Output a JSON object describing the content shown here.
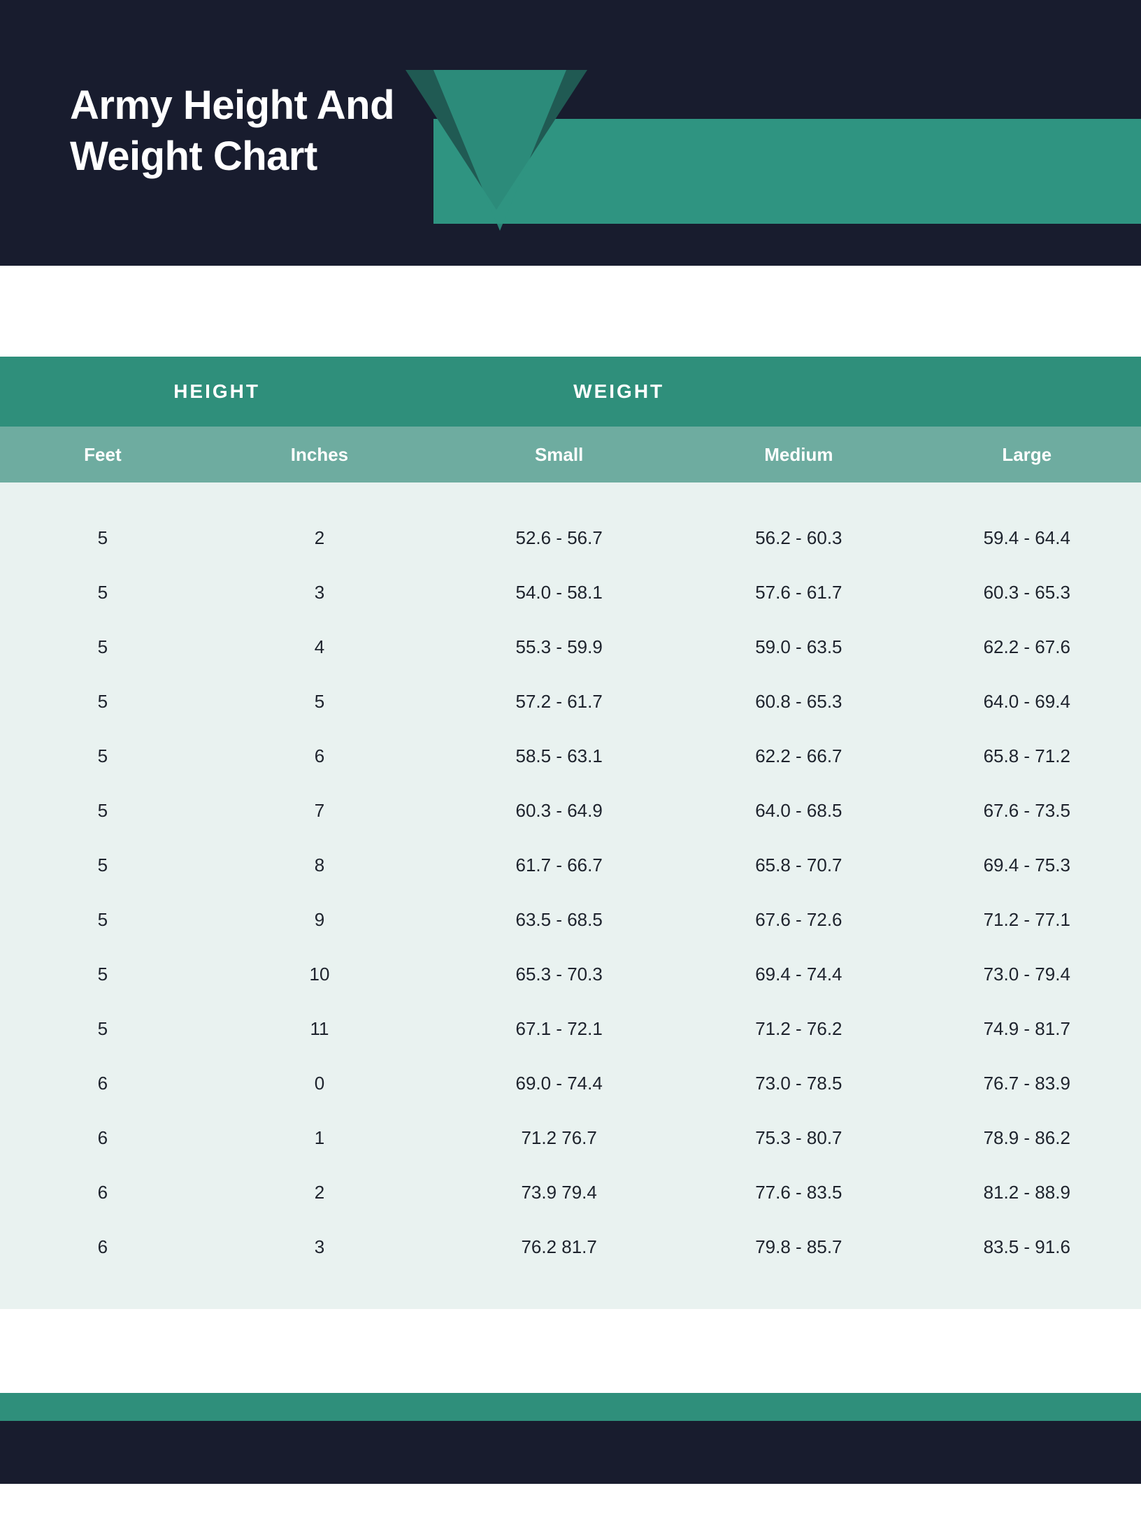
{
  "colors": {
    "dark_navy": "#181c2e",
    "teal_dark": "#2f8f7b",
    "teal_band": "#2f9481",
    "teal_mid": "#6eaca0",
    "body_bg": "#e9f2f0",
    "text_dark": "#1e232d",
    "white": "#ffffff",
    "triangle_back": "#205a53",
    "triangle_front": "#2f9481"
  },
  "header": {
    "title_line1": "Army Height And",
    "title_line2": "Weight Chart",
    "title_fontsize": 58,
    "title_fontweight": 800
  },
  "table": {
    "type": "table",
    "top_headers": {
      "height": "HEIGHT",
      "weight": "WEIGHT"
    },
    "sub_headers": {
      "feet": "Feet",
      "inches": "Inches",
      "small": "Small",
      "medium": "Medium",
      "large": "Large"
    },
    "header_fontsize": 28,
    "subheader_fontsize": 26,
    "row_fontsize": 26,
    "column_widths_pct": [
      18,
      20,
      22,
      20,
      20
    ],
    "rows": [
      {
        "feet": "5",
        "inches": "2",
        "small": "52.6 - 56.7",
        "medium": "56.2 - 60.3",
        "large": "59.4 - 64.4"
      },
      {
        "feet": "5",
        "inches": "3",
        "small": "54.0 - 58.1",
        "medium": "57.6 - 61.7",
        "large": "60.3 - 65.3"
      },
      {
        "feet": "5",
        "inches": "4",
        "small": "55.3 - 59.9",
        "medium": "59.0 - 63.5",
        "large": "62.2 - 67.6"
      },
      {
        "feet": "5",
        "inches": "5",
        "small": "57.2 - 61.7",
        "medium": "60.8 - 65.3",
        "large": "64.0 - 69.4"
      },
      {
        "feet": "5",
        "inches": "6",
        "small": "58.5 - 63.1",
        "medium": "62.2 - 66.7",
        "large": "65.8 - 71.2"
      },
      {
        "feet": "5",
        "inches": "7",
        "small": "60.3 - 64.9",
        "medium": "64.0 - 68.5",
        "large": "67.6 - 73.5"
      },
      {
        "feet": "5",
        "inches": "8",
        "small": "61.7 - 66.7",
        "medium": "65.8 - 70.7",
        "large": "69.4 - 75.3"
      },
      {
        "feet": "5",
        "inches": "9",
        "small": "63.5 - 68.5",
        "medium": "67.6 - 72.6",
        "large": "71.2 - 77.1"
      },
      {
        "feet": "5",
        "inches": "10",
        "small": "65.3 - 70.3",
        "medium": "69.4 - 74.4",
        "large": "73.0 - 79.4"
      },
      {
        "feet": "5",
        "inches": "11",
        "small": "67.1 - 72.1",
        "medium": "71.2 - 76.2",
        "large": "74.9 - 81.7"
      },
      {
        "feet": "6",
        "inches": "0",
        "small": "69.0 - 74.4",
        "medium": "73.0 - 78.5",
        "large": "76.7 - 83.9"
      },
      {
        "feet": "6",
        "inches": "1",
        "small": "71.2 76.7",
        "medium": "75.3 - 80.7",
        "large": "78.9 - 86.2"
      },
      {
        "feet": "6",
        "inches": "2",
        "small": "73.9 79.4",
        "medium": "77.6 - 83.5",
        "large": "81.2 - 88.9"
      },
      {
        "feet": "6",
        "inches": "3",
        "small": "76.2 81.7",
        "medium": "79.8 - 85.7",
        "large": "83.5 - 91.6"
      }
    ]
  }
}
